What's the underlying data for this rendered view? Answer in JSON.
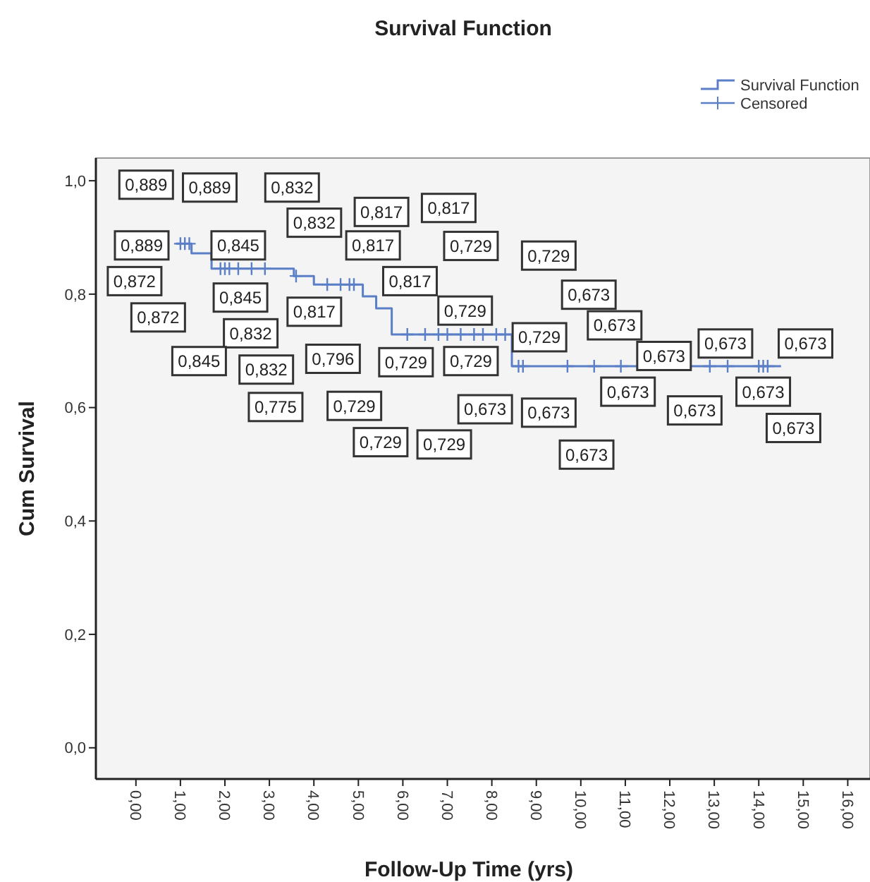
{
  "chart_data": {
    "type": "step",
    "title": "Survival Function",
    "xlabel": "Follow-Up Time (yrs)",
    "ylabel": "Cum Survival",
    "xlim": [
      -0.9,
      16.5
    ],
    "ylim": [
      -0.055,
      1.04
    ],
    "xticks": [
      {
        "value": 0,
        "label": "0,00"
      },
      {
        "value": 1,
        "label": "1,00"
      },
      {
        "value": 2,
        "label": "2,00"
      },
      {
        "value": 3,
        "label": "3,00"
      },
      {
        "value": 4,
        "label": "4,00"
      },
      {
        "value": 5,
        "label": "5,00"
      },
      {
        "value": 6,
        "label": "6,00"
      },
      {
        "value": 7,
        "label": "7,00"
      },
      {
        "value": 8,
        "label": "8,00"
      },
      {
        "value": 9,
        "label": "9,00"
      },
      {
        "value": 10,
        "label": "10,00"
      },
      {
        "value": 11,
        "label": "11,00"
      },
      {
        "value": 12,
        "label": "12,00"
      },
      {
        "value": 13,
        "label": "13,00"
      },
      {
        "value": 14,
        "label": "14,00"
      },
      {
        "value": 15,
        "label": "15,00"
      },
      {
        "value": 16,
        "label": "16,00"
      }
    ],
    "yticks": [
      {
        "value": 0,
        "label": "0,0"
      },
      {
        "value": 0.2,
        "label": "0,2"
      },
      {
        "value": 0.4,
        "label": "0,4"
      },
      {
        "value": 0.6,
        "label": "0,6"
      },
      {
        "value": 0.8,
        "label": "0,8"
      },
      {
        "value": 1,
        "label": "1,0"
      }
    ],
    "grid": false,
    "legend": "top right",
    "series": [
      {
        "name": "Survival Function",
        "color": "#5b7fc7",
        "x": [
          0.9,
          1.25,
          1.7,
          3.55,
          4.0,
          5.1,
          5.4,
          5.75,
          8.45,
          14.5
        ],
        "values": [
          0.889,
          0.872,
          0.845,
          0.832,
          0.817,
          0.796,
          0.775,
          0.729,
          0.673,
          0.673
        ]
      },
      {
        "name": "Censored",
        "type": "scatter",
        "color": "#5b7fc7",
        "marker": "cross",
        "x": [
          1.0,
          1.1,
          1.2,
          1.9,
          2.0,
          2.1,
          2.3,
          2.6,
          2.9,
          3.6,
          4.3,
          4.6,
          4.8,
          4.9,
          6.1,
          6.5,
          6.8,
          7.0,
          7.3,
          7.6,
          7.8,
          8.1,
          8.3,
          8.6,
          8.7,
          9.7,
          10.3,
          10.9,
          12.9,
          13.3,
          14.0,
          14.1,
          14.2
        ],
        "values": [
          0.889,
          0.889,
          0.889,
          0.845,
          0.845,
          0.845,
          0.845,
          0.845,
          0.845,
          0.832,
          0.817,
          0.817,
          0.817,
          0.817,
          0.729,
          0.729,
          0.729,
          0.729,
          0.729,
          0.729,
          0.729,
          0.729,
          0.729,
          0.673,
          0.673,
          0.673,
          0.673,
          0.673,
          0.673,
          0.673,
          0.673,
          0.673,
          0.673
        ]
      }
    ],
    "annotations": [
      {
        "text": "0,889",
        "x": 0.23,
        "y": 0.993
      },
      {
        "text": "0,889",
        "x": 1.66,
        "y": 0.988
      },
      {
        "text": "0,832",
        "x": 3.51,
        "y": 0.988
      },
      {
        "text": "0,832",
        "x": 4.01,
        "y": 0.926
      },
      {
        "text": "0,817",
        "x": 5.52,
        "y": 0.945
      },
      {
        "text": "0,817",
        "x": 7.03,
        "y": 0.952
      },
      {
        "text": "0,889",
        "x": 0.13,
        "y": 0.886
      },
      {
        "text": "0,845",
        "x": 2.3,
        "y": 0.886
      },
      {
        "text": "0,817",
        "x": 5.33,
        "y": 0.886
      },
      {
        "text": "0,872",
        "x": -0.03,
        "y": 0.823
      },
      {
        "text": "0,817",
        "x": 6.16,
        "y": 0.823
      },
      {
        "text": "0,872",
        "x": 0.5,
        "y": 0.759
      },
      {
        "text": "0,845",
        "x": 2.35,
        "y": 0.794
      },
      {
        "text": "0,817",
        "x": 4.01,
        "y": 0.769
      },
      {
        "text": "0,832",
        "x": 2.58,
        "y": 0.731
      },
      {
        "text": "0,845",
        "x": 1.42,
        "y": 0.682
      },
      {
        "text": "0,832",
        "x": 2.93,
        "y": 0.667
      },
      {
        "text": "0,796",
        "x": 4.43,
        "y": 0.686
      },
      {
        "text": "0,729",
        "x": 6.07,
        "y": 0.68
      },
      {
        "text": "0,775",
        "x": 3.14,
        "y": 0.601
      },
      {
        "text": "0,729",
        "x": 4.91,
        "y": 0.603
      },
      {
        "text": "0,729",
        "x": 5.5,
        "y": 0.539
      },
      {
        "text": "0,729",
        "x": 6.93,
        "y": 0.535
      },
      {
        "text": "0,729",
        "x": 7.53,
        "y": 0.885
      },
      {
        "text": "0,729",
        "x": 9.28,
        "y": 0.868
      },
      {
        "text": "0,673",
        "x": 10.18,
        "y": 0.799
      },
      {
        "text": "0,729",
        "x": 7.4,
        "y": 0.771
      },
      {
        "text": "0,673",
        "x": 10.76,
        "y": 0.745
      },
      {
        "text": "0,729",
        "x": 9.07,
        "y": 0.724
      },
      {
        "text": "0,729",
        "x": 7.53,
        "y": 0.682
      },
      {
        "text": "0,673",
        "x": 11.87,
        "y": 0.691
      },
      {
        "text": "0,673",
        "x": 13.25,
        "y": 0.713
      },
      {
        "text": "0,673",
        "x": 15.05,
        "y": 0.713
      },
      {
        "text": "0,673",
        "x": 11.06,
        "y": 0.628
      },
      {
        "text": "0,673",
        "x": 14.1,
        "y": 0.628
      },
      {
        "text": "0,673",
        "x": 7.85,
        "y": 0.597
      },
      {
        "text": "0,673",
        "x": 9.28,
        "y": 0.591
      },
      {
        "text": "0,673",
        "x": 12.56,
        "y": 0.595
      },
      {
        "text": "0,673",
        "x": 14.78,
        "y": 0.564
      },
      {
        "text": "0,673",
        "x": 10.13,
        "y": 0.517
      }
    ]
  }
}
